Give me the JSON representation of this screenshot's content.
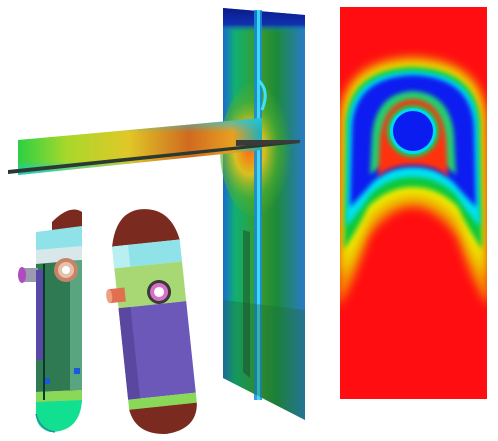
{
  "figure": {
    "panels": [
      {
        "id": "pipe-tee-cfd-slice",
        "colormap": "jet"
      },
      {
        "id": "pressure-vessel-models"
      },
      {
        "id": "thermal-plume-contour",
        "colormap": "jet"
      }
    ]
  },
  "colors": {
    "jet_red": "#ff0d10",
    "jet_orange": "#ff8a00",
    "jet_yellow": "#f3f300",
    "jet_green": "#10c83a",
    "jet_cyan": "#00e5ff",
    "jet_blue": "#0a1cf0",
    "dark_navy": "#0b1a8a",
    "vessel_purple": "#6b58b8",
    "vessel_green": "#2f7a52",
    "vessel_brown": "#7a2a1e",
    "vessel_cyan": "#8fe3e8"
  }
}
